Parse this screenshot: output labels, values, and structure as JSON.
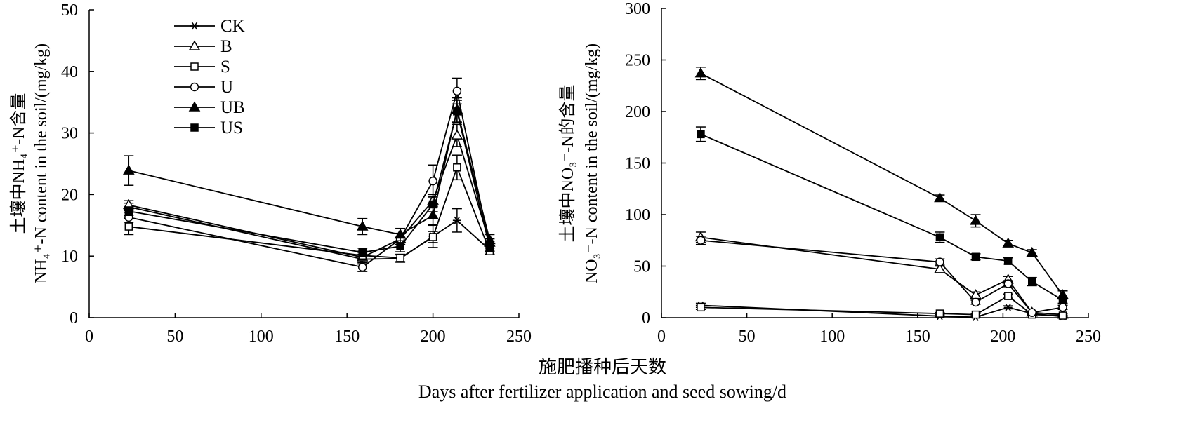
{
  "shared_xlabel": {
    "zh": "施肥播种后天数",
    "en": "Days after fertilizer application and seed sowing/d"
  },
  "legend": [
    "CK",
    "B",
    "S",
    "U",
    "UB",
    "US"
  ],
  "chart_data": [
    {
      "type": "line",
      "ylabel_zh": "土壤中NH₄⁺-N含量",
      "ylabel_en": "NH₄⁺-N content in the soil/(mg/kg)",
      "xlim": [
        0,
        250
      ],
      "ylim": [
        0,
        50
      ],
      "xticks": [
        0,
        50,
        100,
        150,
        200,
        250
      ],
      "yticks": [
        0,
        10,
        20,
        30,
        40,
        50
      ],
      "x": [
        23,
        159,
        181,
        200,
        214,
        233
      ],
      "series": [
        {
          "name": "CK",
          "marker": "star",
          "values": [
            18,
            9.5,
            9.6,
            13.2,
            15.8,
            11.0
          ],
          "errors": [
            0.6,
            0.8,
            0.6,
            1.8,
            1.9,
            0.7
          ]
        },
        {
          "name": "B",
          "marker": "triangle-open",
          "values": [
            18.3,
            9.8,
            12.8,
            19.0,
            29.6,
            12.2
          ],
          "errors": [
            0.7,
            0.8,
            0.9,
            1.0,
            1.8,
            0.6
          ]
        },
        {
          "name": "S",
          "marker": "square-open",
          "values": [
            14.8,
            10.1,
            9.7,
            13.1,
            24.4,
            10.8
          ],
          "errors": [
            1.3,
            0.7,
            0.6,
            0.9,
            2.0,
            0.5
          ]
        },
        {
          "name": "U",
          "marker": "circle-open",
          "values": [
            16.3,
            8.2,
            12.8,
            22.2,
            36.8,
            11.6
          ],
          "errors": [
            0.8,
            0.7,
            0.9,
            2.6,
            2.1,
            0.8
          ]
        },
        {
          "name": "UB",
          "marker": "triangle-filled",
          "values": [
            23.9,
            14.8,
            13.5,
            16.6,
            33.8,
            12.6
          ],
          "errors": [
            2.4,
            1.3,
            1.0,
            1.5,
            1.9,
            0.9
          ]
        },
        {
          "name": "US",
          "marker": "square-filled",
          "values": [
            17.3,
            10.6,
            11.6,
            18.4,
            33.5,
            11.4
          ],
          "errors": [
            0.7,
            0.7,
            0.9,
            1.2,
            1.8,
            0.6
          ]
        }
      ]
    },
    {
      "type": "line",
      "ylabel_zh": "土壤中NO₃⁻-N的含量",
      "ylabel_en": "NO₃⁻-N content in the soil/(mg/kg)",
      "xlim": [
        0,
        250
      ],
      "ylim": [
        0,
        300
      ],
      "xticks": [
        0,
        50,
        100,
        150,
        200,
        250
      ],
      "yticks": [
        0,
        50,
        100,
        150,
        200,
        250,
        300
      ],
      "x": [
        23,
        163,
        184,
        203,
        217,
        235
      ],
      "series": [
        {
          "name": "CK",
          "marker": "star",
          "values": [
            12,
            1.5,
            0.5,
            10,
            4,
            1
          ],
          "errors": [
            2,
            0.5,
            0.5,
            1.5,
            1,
            0.5
          ]
        },
        {
          "name": "B",
          "marker": "triangle-open",
          "values": [
            78,
            47,
            22,
            37,
            5,
            3
          ],
          "errors": [
            5,
            3,
            3,
            3,
            1,
            1
          ]
        },
        {
          "name": "S",
          "marker": "square-open",
          "values": [
            10,
            4,
            3,
            21,
            3,
            2
          ],
          "errors": [
            2,
            1,
            1,
            2,
            1,
            0.5
          ]
        },
        {
          "name": "U",
          "marker": "circle-open",
          "values": [
            75,
            54,
            15,
            33,
            5,
            10
          ],
          "errors": [
            4,
            3,
            2,
            3,
            1,
            2
          ]
        },
        {
          "name": "UB",
          "marker": "triangle-filled",
          "values": [
            237,
            116,
            94,
            72,
            63,
            22
          ],
          "errors": [
            6,
            3,
            6,
            3,
            3,
            4
          ]
        },
        {
          "name": "US",
          "marker": "square-filled",
          "values": [
            178,
            78,
            59,
            55,
            35,
            17
          ],
          "errors": [
            7,
            5,
            3,
            3,
            4,
            3
          ]
        }
      ]
    }
  ]
}
